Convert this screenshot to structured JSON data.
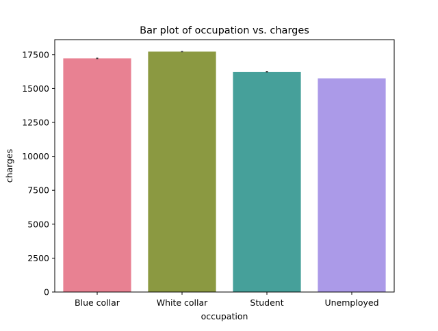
{
  "chart_data": {
    "type": "bar",
    "title": "Bar plot of occupation vs. charges",
    "xlabel": "occupation",
    "ylabel": "charges",
    "categories": [
      "Blue collar",
      "White collar",
      "Student",
      "Unemployed"
    ],
    "values": [
      17220,
      17720,
      16230,
      15750
    ],
    "error_bars": [
      [
        17170,
        17270
      ],
      [
        17680,
        17760
      ],
      [
        16180,
        16280
      ],
      [
        15750,
        15750
      ]
    ],
    "colors": [
      "#e88192",
      "#8b9941",
      "#46a09a",
      "#ab9ae8"
    ],
    "errorbar_color": "#3d3d3d",
    "ylim": [
      0,
      18600
    ],
    "yticks": [
      0,
      2500,
      5000,
      7500,
      10000,
      12500,
      15000,
      17500
    ],
    "ytick_labels": [
      "0",
      "2500",
      "5000",
      "7500",
      "10000",
      "12500",
      "15000",
      "17500"
    ],
    "grid": false,
    "legend": "none"
  }
}
